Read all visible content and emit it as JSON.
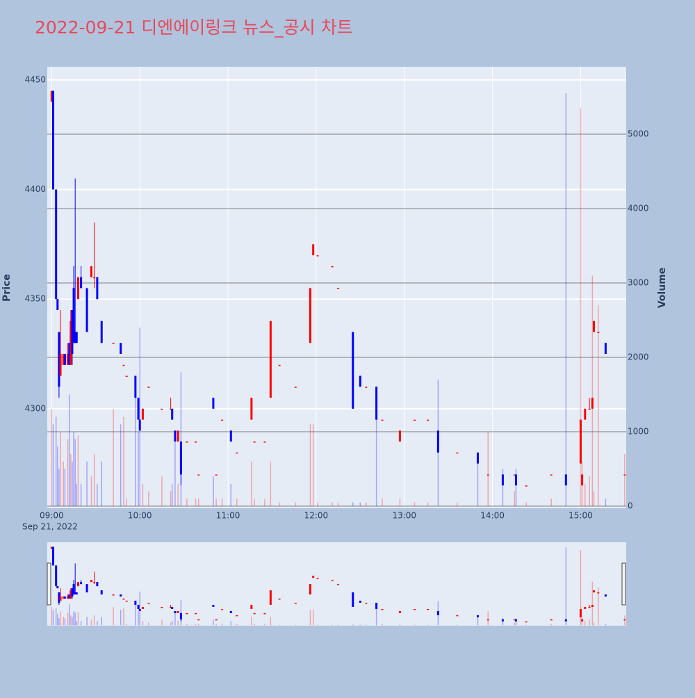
{
  "chart_data": {
    "type": "candlestick",
    "title": "2022-09-21 디엔에이링크 뉴스_공시 차트",
    "y_label": "Price",
    "y2_label": "Volume",
    "x_date": "Sep 21, 2022",
    "increasing_color": "#ff0000",
    "decreasing_color": "#0000ff",
    "x": [
      "09:00",
      "09:01",
      "09:03",
      "09:04",
      "09:05",
      "09:06",
      "09:08",
      "09:09",
      "09:11",
      "09:12",
      "09:13",
      "09:14",
      "09:15",
      "09:16",
      "09:17",
      "09:18",
      "09:20",
      "09:24",
      "09:27",
      "09:29",
      "09:31",
      "09:34",
      "09:42",
      "09:47",
      "09:49",
      "09:51",
      "09:57",
      "09:59",
      "10:00",
      "10:02",
      "10:06",
      "10:15",
      "10:21",
      "10:22",
      "10:24",
      "10:26",
      "10:28",
      "10:32",
      "10:38",
      "10:40",
      "10:50",
      "10:52",
      "10:56",
      "11:02",
      "11:06",
      "11:16",
      "11:18",
      "11:25",
      "11:29",
      "11:35",
      "11:46",
      "11:56",
      "11:58",
      "12:01",
      "12:11",
      "12:15",
      "12:25",
      "12:30",
      "12:34",
      "12:41",
      "12:45",
      "12:57",
      "13:07",
      "13:16",
      "13:23",
      "13:36",
      "13:50",
      "13:57",
      "14:07",
      "14:15",
      "14:16",
      "14:23",
      "14:40",
      "14:50",
      "15:00",
      "15:01",
      "15:03",
      "15:06",
      "15:08",
      "15:09",
      "15:12",
      "15:17",
      "15:30"
    ],
    "open": [
      4440,
      4445,
      4400,
      4350,
      4335,
      4315,
      4320,
      4325,
      4320,
      4330,
      4320,
      4345,
      4355,
      4335,
      4335,
      4350,
      4360,
      4355,
      4360,
      4360,
      4360,
      4340,
      4330,
      4330,
      4320,
      4315,
      4315,
      4305,
      4295,
      4295,
      4310,
      4300,
      4300,
      4300,
      4290,
      4285,
      4285,
      4285,
      4285,
      4270,
      4305,
      4270,
      4295,
      4290,
      4280,
      4295,
      4285,
      4285,
      4305,
      4320,
      4310,
      4330,
      4370,
      4370,
      4365,
      4355,
      4335,
      4315,
      4310,
      4310,
      4295,
      4285,
      4295,
      4295,
      4290,
      4280,
      4280,
      4270,
      4270,
      4270,
      4270,
      4265,
      4270,
      4270,
      4275,
      4265,
      4295,
      4300,
      4300,
      4335,
      4335,
      4330,
      4270
    ],
    "high": [
      4445,
      4445,
      4400,
      4350,
      4335,
      4345,
      4325,
      4325,
      4330,
      4330,
      4345,
      4345,
      4365,
      4405,
      4335,
      4360,
      4365,
      4355,
      4365,
      4385,
      4360,
      4340,
      4330,
      4330,
      4320,
      4315,
      4315,
      4305,
      4295,
      4300,
      4310,
      4300,
      4305,
      4300,
      4290,
      4290,
      4285,
      4285,
      4285,
      4270,
      4305,
      4270,
      4295,
      4290,
      4280,
      4305,
      4285,
      4285,
      4340,
      4320,
      4310,
      4355,
      4375,
      4370,
      4365,
      4355,
      4335,
      4315,
      4310,
      4310,
      4295,
      4290,
      4295,
      4295,
      4290,
      4280,
      4280,
      4270,
      4270,
      4270,
      4270,
      4265,
      4270,
      4270,
      4295,
      4270,
      4300,
      4305,
      4305,
      4340,
      4335,
      4330,
      4270
    ],
    "low": [
      4440,
      4400,
      4350,
      4345,
      4305,
      4315,
      4320,
      4320,
      4320,
      4320,
      4320,
      4320,
      4330,
      4330,
      4330,
      4350,
      4355,
      4335,
      4360,
      4355,
      4350,
      4330,
      4330,
      4325,
      4320,
      4315,
      4305,
      4295,
      4290,
      4295,
      4310,
      4300,
      4300,
      4295,
      4285,
      4285,
      4265,
      4285,
      4285,
      4270,
      4300,
      4270,
      4295,
      4285,
      4280,
      4295,
      4285,
      4285,
      4305,
      4320,
      4310,
      4330,
      4370,
      4370,
      4365,
      4355,
      4300,
      4310,
      4310,
      4295,
      4295,
      4285,
      4295,
      4295,
      4280,
      4280,
      4275,
      4270,
      4265,
      4270,
      4265,
      4265,
      4270,
      4265,
      4275,
      4265,
      4295,
      4300,
      4300,
      4335,
      4335,
      4325,
      4270
    ],
    "close": [
      4445,
      4400,
      4350,
      4345,
      4310,
      4325,
      4325,
      4320,
      4325,
      4320,
      4340,
      4325,
      4330,
      4330,
      4330,
      4360,
      4355,
      4335,
      4365,
      4360,
      4350,
      4330,
      4330,
      4325,
      4320,
      4315,
      4305,
      4295,
      4290,
      4300,
      4310,
      4300,
      4300,
      4295,
      4285,
      4290,
      4270,
      4285,
      4285,
      4270,
      4300,
      4270,
      4295,
      4285,
      4280,
      4305,
      4285,
      4285,
      4340,
      4320,
      4310,
      4355,
      4375,
      4370,
      4365,
      4355,
      4300,
      4310,
      4310,
      4295,
      4295,
      4290,
      4295,
      4295,
      4280,
      4280,
      4275,
      4270,
      4265,
      4270,
      4265,
      4265,
      4270,
      4265,
      4295,
      4270,
      4300,
      4300,
      4305,
      4340,
      4335,
      4325,
      4270
    ],
    "volume": [
      1300,
      1100,
      1200,
      800,
      500,
      1000,
      600,
      500,
      900,
      1500,
      700,
      600,
      1000,
      900,
      300,
      950,
      300,
      600,
      400,
      700,
      300,
      600,
      1300,
      1100,
      1200,
      100,
      1500,
      1000,
      2400,
      300,
      200,
      400,
      200,
      300,
      1000,
      300,
      1800,
      100,
      100,
      100,
      400,
      100,
      100,
      300,
      100,
      600,
      100,
      100,
      600,
      50,
      50,
      1100,
      1100,
      50,
      50,
      50,
      50,
      50,
      50,
      1300,
      100,
      100,
      50,
      50,
      1700,
      50,
      700,
      1000,
      500,
      200,
      500,
      50,
      100,
      5550,
      5350,
      600,
      300,
      400,
      3100,
      200,
      2700,
      100,
      700
    ],
    "xlim": [
      "08:57",
      "15:31"
    ],
    "xticks": [
      "09:00",
      "10:00",
      "11:00",
      "12:00",
      "13:00",
      "14:00",
      "15:00"
    ],
    "ylim": [
      4254.6,
      4456
    ],
    "yticks": [
      4300,
      4350,
      4400,
      4450
    ],
    "y2lim": [
      -28,
      5907
    ],
    "y2ticks": [
      0,
      1000,
      2000,
      3000,
      4000,
      5000
    ]
  }
}
